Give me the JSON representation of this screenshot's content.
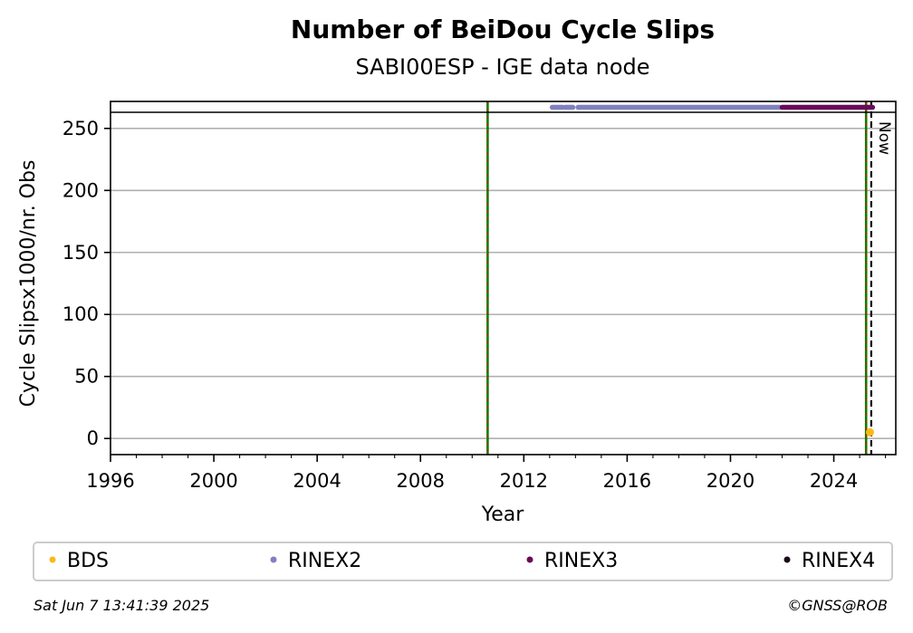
{
  "chart_data": {
    "type": "scatter",
    "title": "Number of BeiDou Cycle Slips",
    "subtitle": "SABI00ESP - IGE data node",
    "xlabel": "Year",
    "ylabel": "Cycle Slipsx1000/nr. Obs",
    "xlim": [
      1996,
      2026.4
    ],
    "ylim": [
      -13,
      263
    ],
    "overflow_row_value": 267,
    "x_ticks": [
      1996,
      2000,
      2004,
      2008,
      2012,
      2016,
      2020,
      2024
    ],
    "x_tick_labels": [
      "1996",
      "2000",
      "2004",
      "2008",
      "2012",
      "2016",
      "2020",
      "2024"
    ],
    "y_ticks": [
      0,
      50,
      100,
      150,
      200,
      250
    ],
    "y_tick_labels": [
      "0",
      "50",
      "100",
      "150",
      "200",
      "250"
    ],
    "grid": "horizontal",
    "series": [
      {
        "name": "BDS",
        "color": "#fbb917",
        "points": [
          {
            "x": 2025.4,
            "y": 5
          }
        ]
      },
      {
        "name": "RINEX2",
        "color": "#8080c0",
        "segments": [
          [
            2013.1,
            2013.5
          ],
          [
            2013.6,
            2013.9
          ],
          [
            2014.1,
            2021.9
          ]
        ]
      },
      {
        "name": "RINEX3",
        "color": "#6a0a5a",
        "segments": [
          [
            2022.0,
            2025.5
          ]
        ]
      },
      {
        "name": "RINEX4",
        "color": "#1a0a1a",
        "segments": []
      }
    ],
    "vertical_lines": [
      {
        "x": 2010.6,
        "style": "green-red-dashed"
      },
      {
        "x": 2025.25,
        "style": "green-red-dashed"
      },
      {
        "x": 2025.45,
        "style": "black-dashed",
        "label": "Now"
      }
    ],
    "legend_placement": "bottom"
  },
  "footer": {
    "timestamp": "Sat Jun  7 13:41:39 2025",
    "credit": "©GNSS@ROB"
  }
}
